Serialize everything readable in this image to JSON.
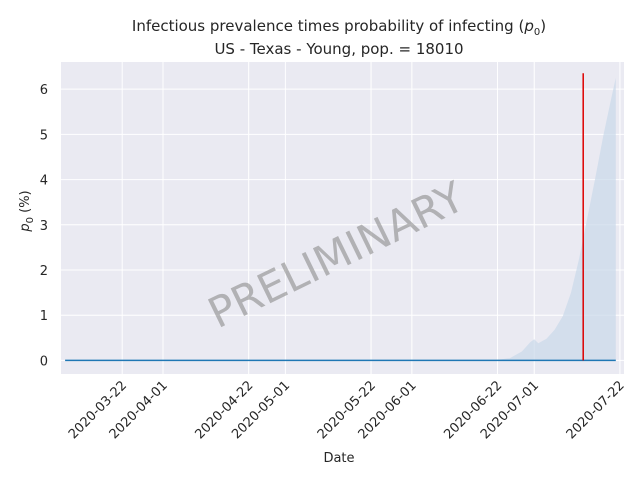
{
  "chart_data": {
    "type": "line",
    "title_main": "Infectious prevalence times probability of infecting (",
    "title_math": "p",
    "title_math_sub": "0",
    "title_close": ")",
    "subtitle": "US - Texas - Young, pop. = 18010",
    "xlabel": "Date",
    "ylabel_math": "p",
    "ylabel_sub": "0",
    "ylabel_units": " (%)",
    "watermark": "PRELIMINARY",
    "grid": true,
    "colors": {
      "background": "#eaeaf2",
      "grid": "#ffffff",
      "line": "#1f77b4",
      "band": "#c9d8ea",
      "marker": "#dd0000"
    },
    "xlim": [
      "2020-03-07",
      "2020-07-23"
    ],
    "ylim": [
      -0.3,
      6.6
    ],
    "x_tick_labels": [
      "2020-03-22",
      "2020-04-01",
      "2020-04-22",
      "2020-05-01",
      "2020-05-22",
      "2020-06-01",
      "2020-06-22",
      "2020-07-01",
      "2020-07-22"
    ],
    "y_tick_labels": [
      "0",
      "1",
      "2",
      "3",
      "4",
      "5",
      "6"
    ],
    "series": [
      {
        "x": [
          "2020-03-08",
          "2020-03-22",
          "2020-04-22",
          "2020-05-22",
          "2020-06-22",
          "2020-07-21"
        ],
        "values": [
          0,
          0,
          0,
          0,
          0,
          0
        ]
      }
    ],
    "uncertainty_band": {
      "x": [
        "2020-06-21",
        "2020-06-25",
        "2020-06-28",
        "2020-06-30",
        "2020-07-01",
        "2020-07-02",
        "2020-07-04",
        "2020-07-06",
        "2020-07-08",
        "2020-07-10",
        "2020-07-12",
        "2020-07-14",
        "2020-07-16",
        "2020-07-18",
        "2020-07-20",
        "2020-07-21"
      ],
      "upper": [
        0,
        0.05,
        0.2,
        0.4,
        0.47,
        0.38,
        0.48,
        0.68,
        0.98,
        1.5,
        2.25,
        3.15,
        4.05,
        5.0,
        5.85,
        6.25
      ],
      "lower": [
        0,
        0,
        0,
        0,
        0,
        0,
        0,
        0,
        0,
        0,
        0,
        0,
        0,
        0,
        0,
        0
      ]
    },
    "marker_line": {
      "x": "2020-07-13",
      "y_range": [
        0,
        6.35
      ]
    }
  }
}
